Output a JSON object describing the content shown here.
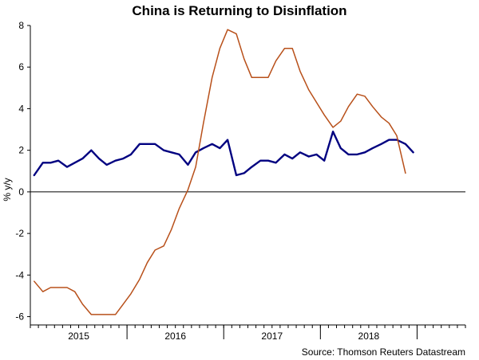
{
  "chart_data": {
    "type": "line",
    "title": "China is Returning to Disinflation",
    "ylabel": "% y/y",
    "xlabel": "",
    "source": "Source: Thomson Reuters Datastream",
    "ylim": [
      -6.4,
      8
    ],
    "yticks": [
      8,
      6,
      4,
      2,
      0,
      -2,
      -4,
      -6
    ],
    "xlim": [
      2014.5,
      2019.0
    ],
    "year_labels": [
      {
        "label": "2015",
        "x": 2015.0
      },
      {
        "label": "2016",
        "x": 2016.0
      },
      {
        "label": "2017",
        "x": 2017.0
      },
      {
        "label": "2018",
        "x": 2018.0
      }
    ],
    "year_boundaries": [
      2015.5,
      2016.5,
      2017.5,
      2018.5
    ],
    "grid": false,
    "colors": {
      "series1": "#000080",
      "series2": "#b8501a",
      "axis": "#000000"
    },
    "series": [
      {
        "color": "#000080",
        "x": [
          2014.54,
          2014.63,
          2014.71,
          2014.79,
          2014.88,
          2014.96,
          2015.04,
          2015.13,
          2015.21,
          2015.29,
          2015.38,
          2015.46,
          2015.54,
          2015.63,
          2015.71,
          2015.79,
          2015.88,
          2015.96,
          2016.04,
          2016.13,
          2016.21,
          2016.29,
          2016.38,
          2016.46,
          2016.54,
          2016.63,
          2016.71,
          2016.79,
          2016.88,
          2016.96,
          2017.04,
          2017.13,
          2017.21,
          2017.29,
          2017.38,
          2017.46,
          2017.54,
          2017.63,
          2017.71,
          2017.79,
          2017.88,
          2017.96,
          2018.04,
          2018.13,
          2018.21,
          2018.29,
          2018.38,
          2018.46,
          2018.54,
          2018.63
        ],
        "y": [
          0.8,
          1.4,
          1.4,
          1.5,
          1.2,
          1.4,
          1.6,
          2.0,
          1.6,
          1.3,
          1.5,
          1.6,
          1.8,
          2.3,
          2.3,
          2.3,
          2.0,
          1.9,
          1.8,
          1.3,
          1.9,
          2.1,
          2.3,
          2.1,
          2.5,
          0.8,
          0.9,
          1.2,
          1.5,
          1.5,
          1.4,
          1.8,
          1.6,
          1.9,
          1.7,
          1.8,
          1.5,
          2.9,
          2.1,
          1.8,
          1.8,
          1.9,
          2.1,
          2.3,
          2.5,
          2.5,
          2.3,
          1.9,
          null,
          null
        ]
      },
      {
        "color": "#b8501a",
        "x": [
          2014.54,
          2014.63,
          2014.71,
          2014.79,
          2014.88,
          2014.96,
          2015.04,
          2015.13,
          2015.21,
          2015.29,
          2015.38,
          2015.46,
          2015.54,
          2015.63,
          2015.71,
          2015.79,
          2015.88,
          2015.96,
          2016.04,
          2016.13,
          2016.21,
          2016.29,
          2016.38,
          2016.46,
          2016.54,
          2016.63,
          2016.71,
          2016.79,
          2016.88,
          2016.96,
          2017.04,
          2017.13,
          2017.21,
          2017.29,
          2017.38,
          2017.46,
          2017.54,
          2017.63,
          2017.71,
          2017.79,
          2017.88,
          2017.96,
          2018.04,
          2018.13,
          2018.21,
          2018.29,
          2018.38,
          2018.46
        ],
        "y": [
          -4.3,
          -4.8,
          -4.6,
          -4.6,
          -4.6,
          -4.8,
          -5.4,
          -5.9,
          -5.9,
          -5.9,
          -5.9,
          -5.4,
          -4.9,
          -4.2,
          -3.4,
          -2.8,
          -2.6,
          -1.8,
          -0.8,
          0.1,
          1.2,
          3.3,
          5.5,
          6.9,
          7.8,
          7.6,
          6.4,
          5.5,
          5.5,
          5.5,
          6.3,
          6.9,
          6.9,
          5.8,
          4.9,
          4.3,
          3.7,
          3.1,
          3.4,
          4.1,
          4.7,
          4.6,
          4.1,
          3.6,
          3.3,
          2.7,
          0.9,
          null
        ]
      }
    ]
  }
}
